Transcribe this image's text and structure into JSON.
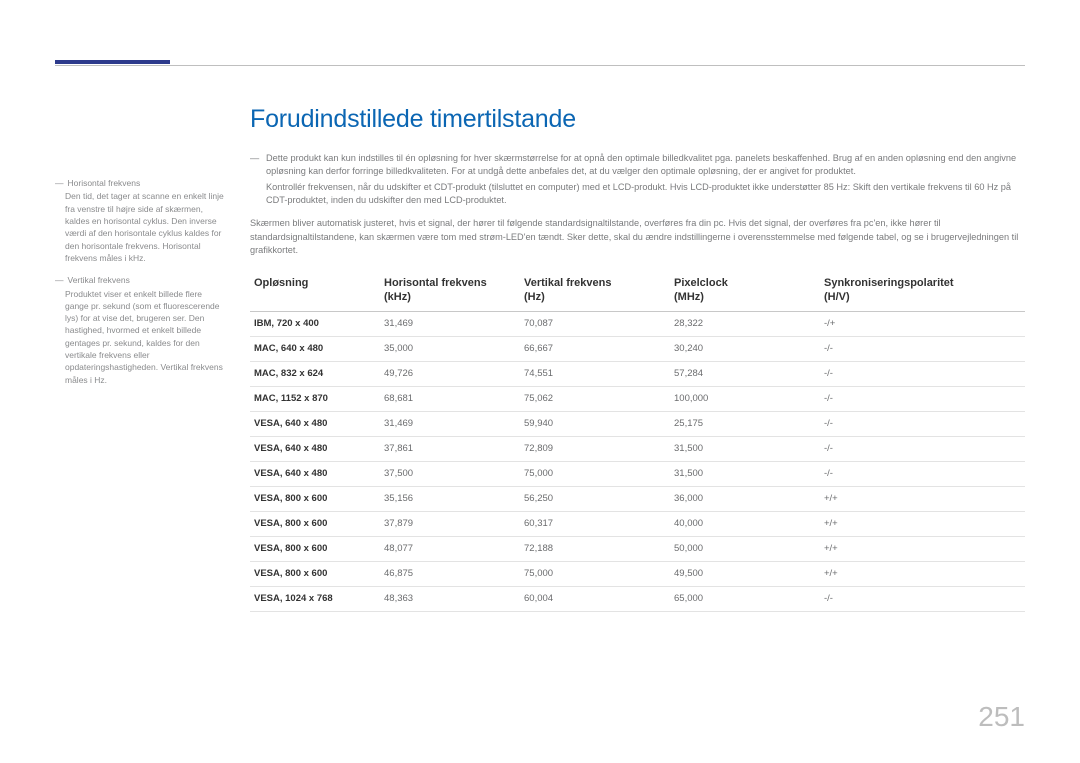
{
  "page_number": "251",
  "title": "Forudindstillede timertilstande",
  "colors": {
    "title": "#0b66b3",
    "accent_bar": "#2d3a8c",
    "rule": "#bfbfbf",
    "body_text": "#7a7b7d",
    "header_text": "#333333",
    "row_border": "#e3e3e3",
    "page_number": "#bdbdbd",
    "background": "#ffffff"
  },
  "typography": {
    "title_fontsize_pt": 25,
    "body_fontsize_pt": 9.2,
    "table_header_fontsize_pt": 11,
    "table_cell_fontsize_pt": 9.5,
    "side_fontsize_pt": 8.5,
    "page_number_fontsize_pt": 28
  },
  "side_notes": [
    {
      "term": "Horisontal frekvens",
      "desc": "Den tid, det tager at scanne en enkelt linje fra venstre til højre side af skærmen, kaldes en horisontal cyklus. Den inverse værdi af den horisontale cyklus kaldes for den horisontale frekvens. Horisontal frekvens måles i kHz."
    },
    {
      "term": "Vertikal frekvens",
      "desc": "Produktet viser et enkelt billede flere gange pr. sekund (som et fluorescerende lys) for at vise det, brugeren ser. Den hastighed, hvormed et enkelt billede gentages pr. sekund, kaldes for den vertikale frekvens eller opdateringshastigheden. Vertikal frekvens måles i Hz."
    }
  ],
  "notes": {
    "line1": "Dette produkt kan kun indstilles til én opløsning for hver skærmstørrelse for at opnå den optimale billedkvalitet pga. panelets beskaffenhed. Brug af en anden opløsning end den angivne opløsning kan derfor forringe billedkvaliteten. For at undgå dette anbefales det, at du vælger den optimale opløsning, der er angivet for produktet.",
    "line2": "Kontrollér frekvensen, når du udskifter et CDT-produkt (tilsluttet en computer) med et LCD-produkt. Hvis LCD-produktet ikke understøtter 85 Hz: Skift den vertikale frekvens til 60 Hz på CDT-produktet, inden du udskifter den med LCD-produktet.",
    "para": "Skærmen bliver automatisk justeret, hvis et signal, der hører til følgende standardsignaltilstande, overføres fra din pc. Hvis det signal, der overføres fra pc'en, ikke hører til standardsignaltilstandene, kan skærmen være tom med strøm-LED'en tændt. Sker dette, skal du ændre indstillingerne i overensstemmelse med følgende tabel, og se i brugervejledningen til grafikkortet."
  },
  "table": {
    "type": "table",
    "columns": [
      {
        "label": "Opløsning",
        "sub": ""
      },
      {
        "label": "Horisontal frekvens",
        "sub": "(kHz)"
      },
      {
        "label": "Vertikal frekvens",
        "sub": "(Hz)"
      },
      {
        "label": "Pixelclock",
        "sub": "(MHz)"
      },
      {
        "label": "Synkroniseringspolaritet",
        "sub": "(H/V)"
      }
    ],
    "rows": [
      [
        "IBM, 720 x 400",
        "31,469",
        "70,087",
        "28,322",
        "-/+"
      ],
      [
        "MAC, 640 x 480",
        "35,000",
        "66,667",
        "30,240",
        "-/-"
      ],
      [
        "MAC, 832 x 624",
        "49,726",
        "74,551",
        "57,284",
        "-/-"
      ],
      [
        "MAC, 1152 x 870",
        "68,681",
        "75,062",
        "100,000",
        "-/-"
      ],
      [
        "VESA, 640 x 480",
        "31,469",
        "59,940",
        "25,175",
        "-/-"
      ],
      [
        "VESA, 640 x 480",
        "37,861",
        "72,809",
        "31,500",
        "-/-"
      ],
      [
        "VESA, 640 x 480",
        "37,500",
        "75,000",
        "31,500",
        "-/-"
      ],
      [
        "VESA, 800 x 600",
        "35,156",
        "56,250",
        "36,000",
        "+/+"
      ],
      [
        "VESA, 800 x 600",
        "37,879",
        "60,317",
        "40,000",
        "+/+"
      ],
      [
        "VESA, 800 x 600",
        "48,077",
        "72,188",
        "50,000",
        "+/+"
      ],
      [
        "VESA, 800 x 600",
        "46,875",
        "75,000",
        "49,500",
        "+/+"
      ],
      [
        "VESA, 1024 x 768",
        "48,363",
        "60,004",
        "65,000",
        "-/-"
      ]
    ]
  }
}
